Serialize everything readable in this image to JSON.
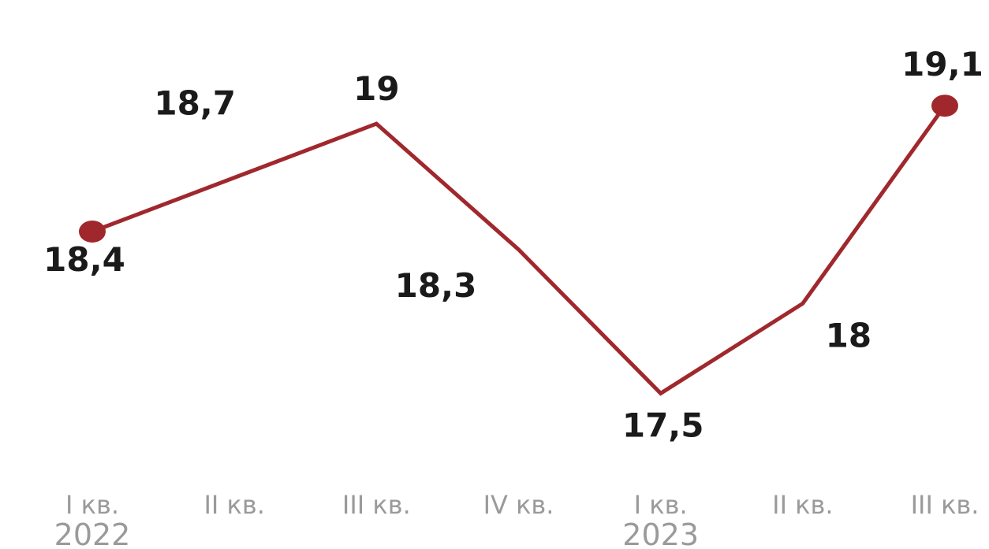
{
  "chart_data": {
    "type": "line",
    "categories": [
      "I кв.",
      "II кв.",
      "III кв.",
      "IV кв.",
      "I кв.",
      "II кв.",
      "III кв."
    ],
    "year_labels": [
      {
        "text": "2022",
        "category_index": 0
      },
      {
        "text": "2023",
        "category_index": 4
      }
    ],
    "series": [
      {
        "values": [
          18.4,
          18.7,
          19,
          18.3,
          17.5,
          18,
          19.1
        ],
        "data_labels": [
          "18,4",
          "18,7",
          "19",
          "18,3",
          "17,5",
          "18",
          "19,1"
        ],
        "color": "#a0282d",
        "marker_indices": [
          0,
          6
        ]
      }
    ],
    "title": "",
    "xlabel": "",
    "ylabel": "",
    "ylim": [
      17.3,
      19.25
    ],
    "grid": false,
    "legend": "none"
  }
}
